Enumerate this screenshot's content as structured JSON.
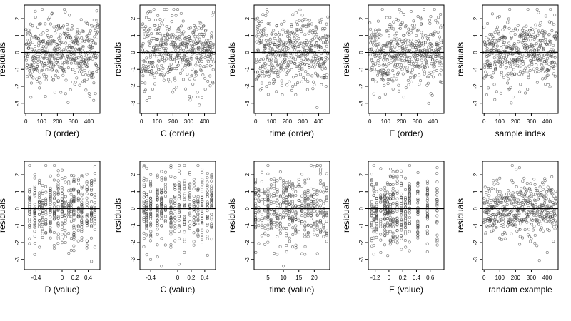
{
  "chart_data": [
    {
      "type": "scatter",
      "xlabel": "D (order)",
      "ylabel": "residuals",
      "xlim": [
        -10,
        470
      ],
      "ylim": [
        -3.6,
        2.8
      ],
      "xticks": [
        0,
        100,
        200,
        300,
        400
      ],
      "yticks": [
        -3,
        -2,
        -1,
        0,
        1,
        2
      ],
      "reference_line_y": 0,
      "x_kind": "order",
      "seed": 11
    },
    {
      "type": "scatter",
      "xlabel": "C (order)",
      "ylabel": "residuals",
      "xlim": [
        -10,
        470
      ],
      "ylim": [
        -3.6,
        2.8
      ],
      "xticks": [
        0,
        100,
        200,
        300,
        400
      ],
      "yticks": [
        -3,
        -2,
        -1,
        0,
        1,
        2
      ],
      "reference_line_y": 0,
      "x_kind": "order",
      "seed": 23
    },
    {
      "type": "scatter",
      "xlabel": "time (order)",
      "ylabel": "residuals",
      "xlim": [
        -10,
        470
      ],
      "ylim": [
        -3.6,
        2.8
      ],
      "xticks": [
        0,
        100,
        200,
        300,
        400
      ],
      "yticks": [
        -3,
        -2,
        -1,
        0,
        1,
        2
      ],
      "reference_line_y": 0,
      "x_kind": "order",
      "seed": 37
    },
    {
      "type": "scatter",
      "xlabel": "E (order)",
      "ylabel": "residuals",
      "xlim": [
        -10,
        470
      ],
      "ylim": [
        -3.6,
        2.8
      ],
      "xticks": [
        0,
        100,
        200,
        300,
        400
      ],
      "yticks": [
        -3,
        -2,
        -1,
        0,
        1,
        2
      ],
      "reference_line_y": 0,
      "x_kind": "order",
      "seed": 41
    },
    {
      "type": "scatter",
      "xlabel": "sample index",
      "ylabel": "residuals",
      "xlim": [
        -10,
        470
      ],
      "ylim": [
        -3.6,
        2.8
      ],
      "xticks": [
        0,
        100,
        200,
        300,
        400
      ],
      "yticks": [
        -3,
        -2,
        -1,
        0,
        1,
        2
      ],
      "reference_line_y": 0,
      "x_kind": "order",
      "seed": 53
    },
    {
      "type": "scatter",
      "xlabel": "D (value)",
      "ylabel": "residuals",
      "xlim": [
        -0.58,
        0.58
      ],
      "ylim": [
        -3.6,
        2.8
      ],
      "xticks": [
        -0.4,
        0.0,
        0.2,
        0.4
      ],
      "yticks": [
        -3,
        -2,
        -1,
        0,
        1,
        2
      ],
      "reference_line_y": 0,
      "x_kind": "columns",
      "columns": [
        -0.5,
        -0.42,
        -0.35,
        -0.3,
        -0.25,
        -0.18,
        -0.12,
        -0.06,
        0.0,
        0.05,
        0.1,
        0.14,
        0.18,
        0.25,
        0.3,
        0.38,
        0.45,
        0.5
      ],
      "seed": 61
    },
    {
      "type": "scatter",
      "xlabel": "C (value)",
      "ylabel": "residuals",
      "xlim": [
        -0.56,
        0.56
      ],
      "ylim": [
        -3.6,
        2.8
      ],
      "xticks": [
        -0.4,
        0.0,
        0.2,
        0.4
      ],
      "yticks": [
        -3,
        -2,
        -1,
        0,
        1,
        2
      ],
      "reference_line_y": 0,
      "x_kind": "columns",
      "columns": [
        -0.5,
        -0.46,
        -0.4,
        -0.3,
        -0.24,
        -0.18,
        -0.1,
        -0.04,
        0.02,
        0.1,
        0.18,
        0.24,
        0.3,
        0.36,
        0.44,
        0.5
      ],
      "seed": 67
    },
    {
      "type": "scatter",
      "xlabel": "time (value)",
      "ylabel": "residuals",
      "xlim": [
        0.5,
        25
      ],
      "ylim": [
        -3.6,
        2.8
      ],
      "xticks": [
        5,
        10,
        15,
        20
      ],
      "yticks": [
        -3,
        -2,
        -1,
        0,
        1,
        2
      ],
      "reference_line_y": 0,
      "x_kind": "columns",
      "columns": [
        1,
        2,
        3,
        4,
        5,
        6,
        7,
        8,
        9,
        10,
        11,
        12,
        13,
        14,
        15,
        16,
        17,
        18,
        19,
        20,
        21,
        22,
        23,
        24
      ],
      "seed": 73
    },
    {
      "type": "scatter",
      "xlabel": "E (value)",
      "ylabel": "residuals",
      "xlim": [
        -0.3,
        0.8
      ],
      "ylim": [
        -3.6,
        2.8
      ],
      "xticks": [
        -0.2,
        0.0,
        0.2,
        0.4,
        0.6
      ],
      "yticks": [
        -3,
        -2,
        -1,
        0,
        1,
        2
      ],
      "reference_line_y": 0,
      "x_kind": "columns",
      "columns": [
        -0.25,
        -0.22,
        -0.18,
        -0.12,
        -0.06,
        -0.02,
        0.02,
        0.06,
        0.12,
        0.18,
        0.24,
        0.3,
        0.42,
        0.56,
        0.7
      ],
      "seed": 79
    },
    {
      "type": "scatter",
      "xlabel": "randam example",
      "ylabel": "residuals",
      "xlim": [
        -10,
        470
      ],
      "ylim": [
        -3.6,
        2.8
      ],
      "xticks": [
        0,
        100,
        200,
        300,
        400
      ],
      "yticks": [
        -3,
        -2,
        -1,
        0,
        1,
        2
      ],
      "reference_line_y": 0,
      "x_kind": "order_narrow",
      "seed": 89
    }
  ]
}
